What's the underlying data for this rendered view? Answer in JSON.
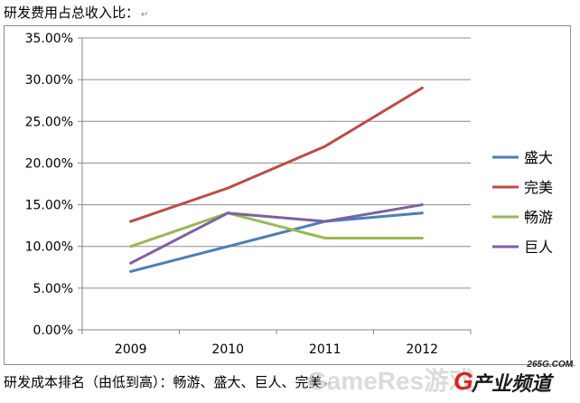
{
  "top_caption": "研发费用占总收入比：",
  "para_mark": "↵",
  "bottom_caption": "研发成本排名（由低到高）：畅游、盛大、巨人、完美",
  "bottom_mark": "↵",
  "corner_mark": "+",
  "watermark": {
    "main": "GameRes游戏",
    "domain": "265G.COM",
    "logo_letter": "G",
    "logo_text": "产业频道"
  },
  "chart_data": {
    "type": "line",
    "categories": [
      "2009",
      "2010",
      "2011",
      "2012"
    ],
    "ylim": [
      0,
      0.35
    ],
    "yticks": [
      "0.00%",
      "5.00%",
      "10.00%",
      "15.00%",
      "20.00%",
      "25.00%",
      "30.00%",
      "35.00%"
    ],
    "ytick_values": [
      0,
      0.05,
      0.1,
      0.15,
      0.2,
      0.25,
      0.3,
      0.35
    ],
    "grid": true,
    "legend_position": "right",
    "series": [
      {
        "name": "盛大",
        "color": "#4a7ebb",
        "values": [
          0.07,
          0.1,
          0.13,
          0.14
        ]
      },
      {
        "name": "完美",
        "color": "#be4b48",
        "values": [
          0.13,
          0.17,
          0.22,
          0.29
        ]
      },
      {
        "name": "畅游",
        "color": "#98b954",
        "values": [
          0.1,
          0.14,
          0.11,
          0.11
        ]
      },
      {
        "name": "巨人",
        "color": "#7d60a0",
        "values": [
          0.08,
          0.14,
          0.13,
          0.15
        ]
      }
    ]
  }
}
